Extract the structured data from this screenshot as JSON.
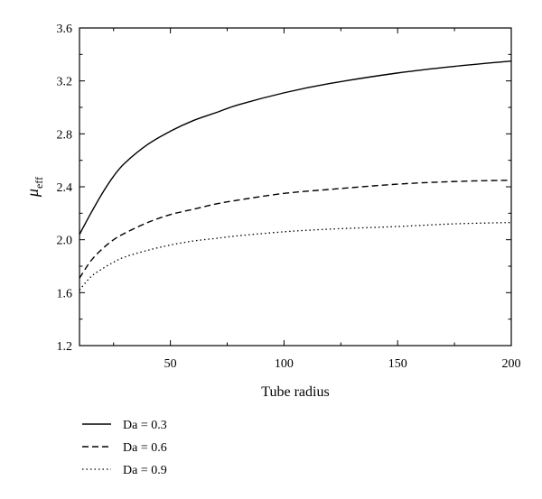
{
  "chart_data": {
    "type": "line",
    "xlabel": "Tube radius",
    "ylabel": "μ",
    "ylabel_sub": "eff",
    "xlim": [
      10,
      200
    ],
    "ylim": [
      1.2,
      3.6
    ],
    "x_ticks": [
      50,
      100,
      150,
      200
    ],
    "x_tick_labels": [
      "50",
      "100",
      "150",
      "200"
    ],
    "y_ticks": [
      1.2,
      1.6,
      2.0,
      2.4,
      2.8,
      3.2,
      3.6
    ],
    "y_tick_labels": [
      "1.2",
      "1.6",
      "2.0",
      "2.4",
      "2.8",
      "3.2",
      "3.6"
    ],
    "grid": false,
    "legend_position": "bottom-left, below plot",
    "series": [
      {
        "name": "Da = 0.3",
        "style": "solid",
        "x": [
          10,
          15,
          20,
          25,
          30,
          40,
          50,
          60,
          70,
          80,
          100,
          120,
          150,
          175,
          200
        ],
        "y": [
          2.04,
          2.2,
          2.35,
          2.48,
          2.58,
          2.72,
          2.82,
          2.9,
          2.96,
          3.02,
          3.11,
          3.18,
          3.26,
          3.31,
          3.35
        ]
      },
      {
        "name": "Da = 0.6",
        "style": "dashed",
        "x": [
          10,
          15,
          20,
          25,
          30,
          40,
          50,
          60,
          70,
          80,
          100,
          120,
          150,
          175,
          200
        ],
        "y": [
          1.71,
          1.84,
          1.93,
          2.0,
          2.05,
          2.13,
          2.19,
          2.23,
          2.27,
          2.3,
          2.35,
          2.38,
          2.42,
          2.44,
          2.45
        ]
      },
      {
        "name": "Da = 0.9",
        "style": "dotted",
        "x": [
          10,
          15,
          20,
          25,
          30,
          40,
          50,
          60,
          70,
          80,
          100,
          120,
          150,
          175,
          200
        ],
        "y": [
          1.62,
          1.72,
          1.78,
          1.83,
          1.87,
          1.92,
          1.96,
          1.99,
          2.01,
          2.03,
          2.06,
          2.08,
          2.1,
          2.12,
          2.13
        ]
      }
    ]
  }
}
